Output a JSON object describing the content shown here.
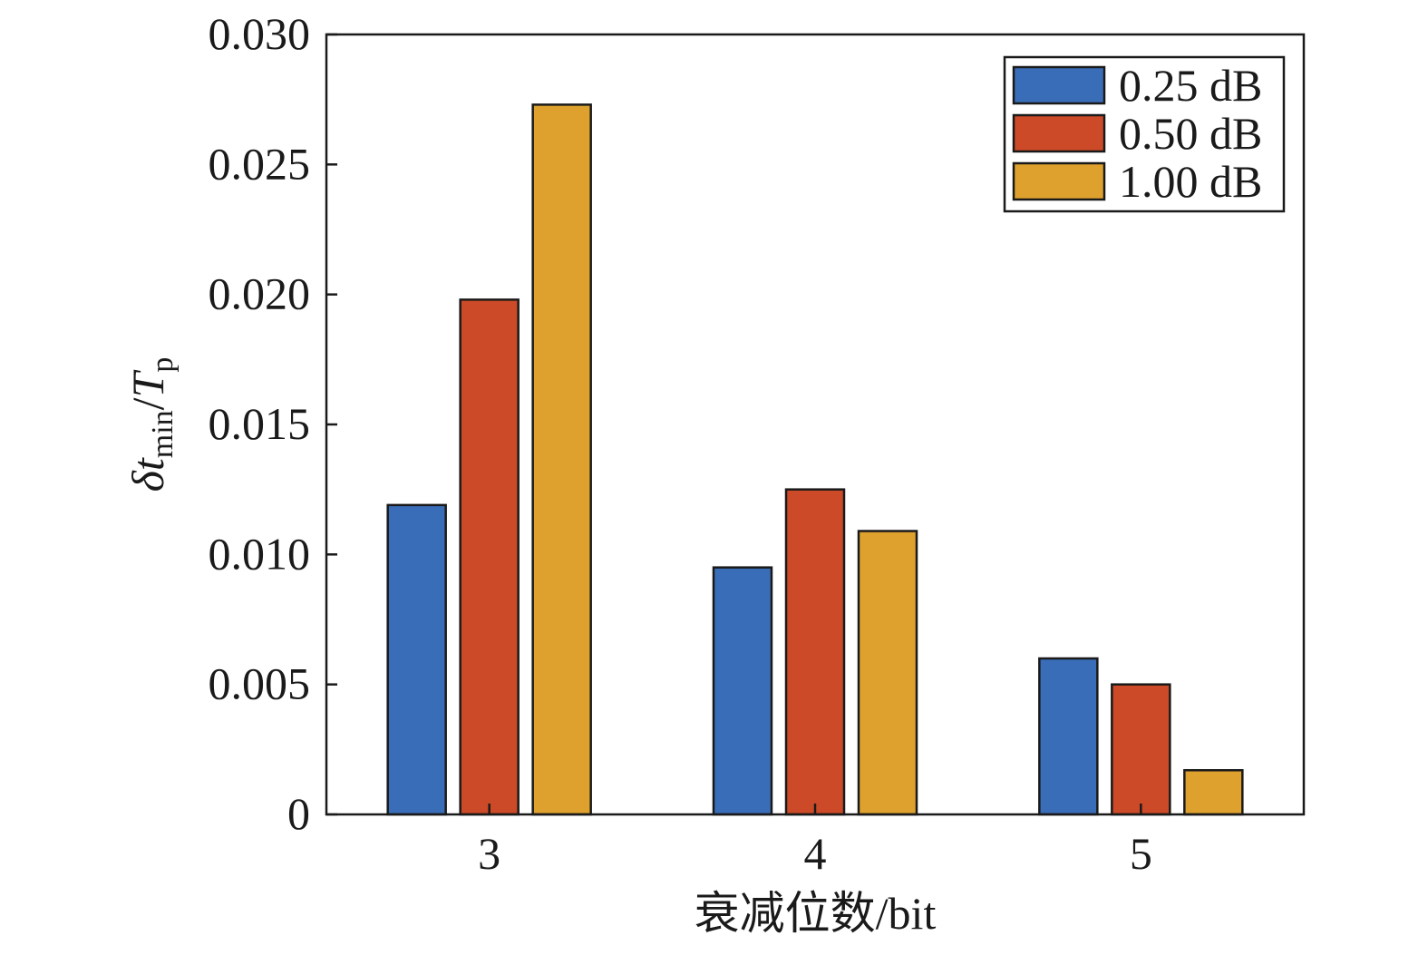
{
  "chart_data": {
    "type": "bar",
    "xlabel": "衰减位数/bit",
    "ylabel": "δt_min/T_p",
    "ylabel_parts": {
      "delta": "δ",
      "t": "t",
      "sub1": "min",
      "slash": "/",
      "T": "T",
      "sub2": "p"
    },
    "categories": [
      "3",
      "4",
      "5"
    ],
    "ylim": [
      0,
      0.03
    ],
    "yticks": [
      0,
      0.005,
      0.01,
      0.015,
      0.02,
      0.025,
      0.03
    ],
    "ytick_labels": [
      "0",
      "0.005",
      "0.010",
      "0.015",
      "0.020",
      "0.025",
      "0.030"
    ],
    "series": [
      {
        "name": "0.25 dB",
        "color": "#3a6db8",
        "values": [
          0.0119,
          0.0095,
          0.006
        ]
      },
      {
        "name": "0.50 dB",
        "color": "#cc4a27",
        "values": [
          0.0198,
          0.0125,
          0.005
        ]
      },
      {
        "name": "1.00 dB",
        "color": "#dea12e",
        "values": [
          0.0273,
          0.0109,
          0.0017
        ]
      }
    ],
    "legend_position": "top-right",
    "grid": false
  }
}
